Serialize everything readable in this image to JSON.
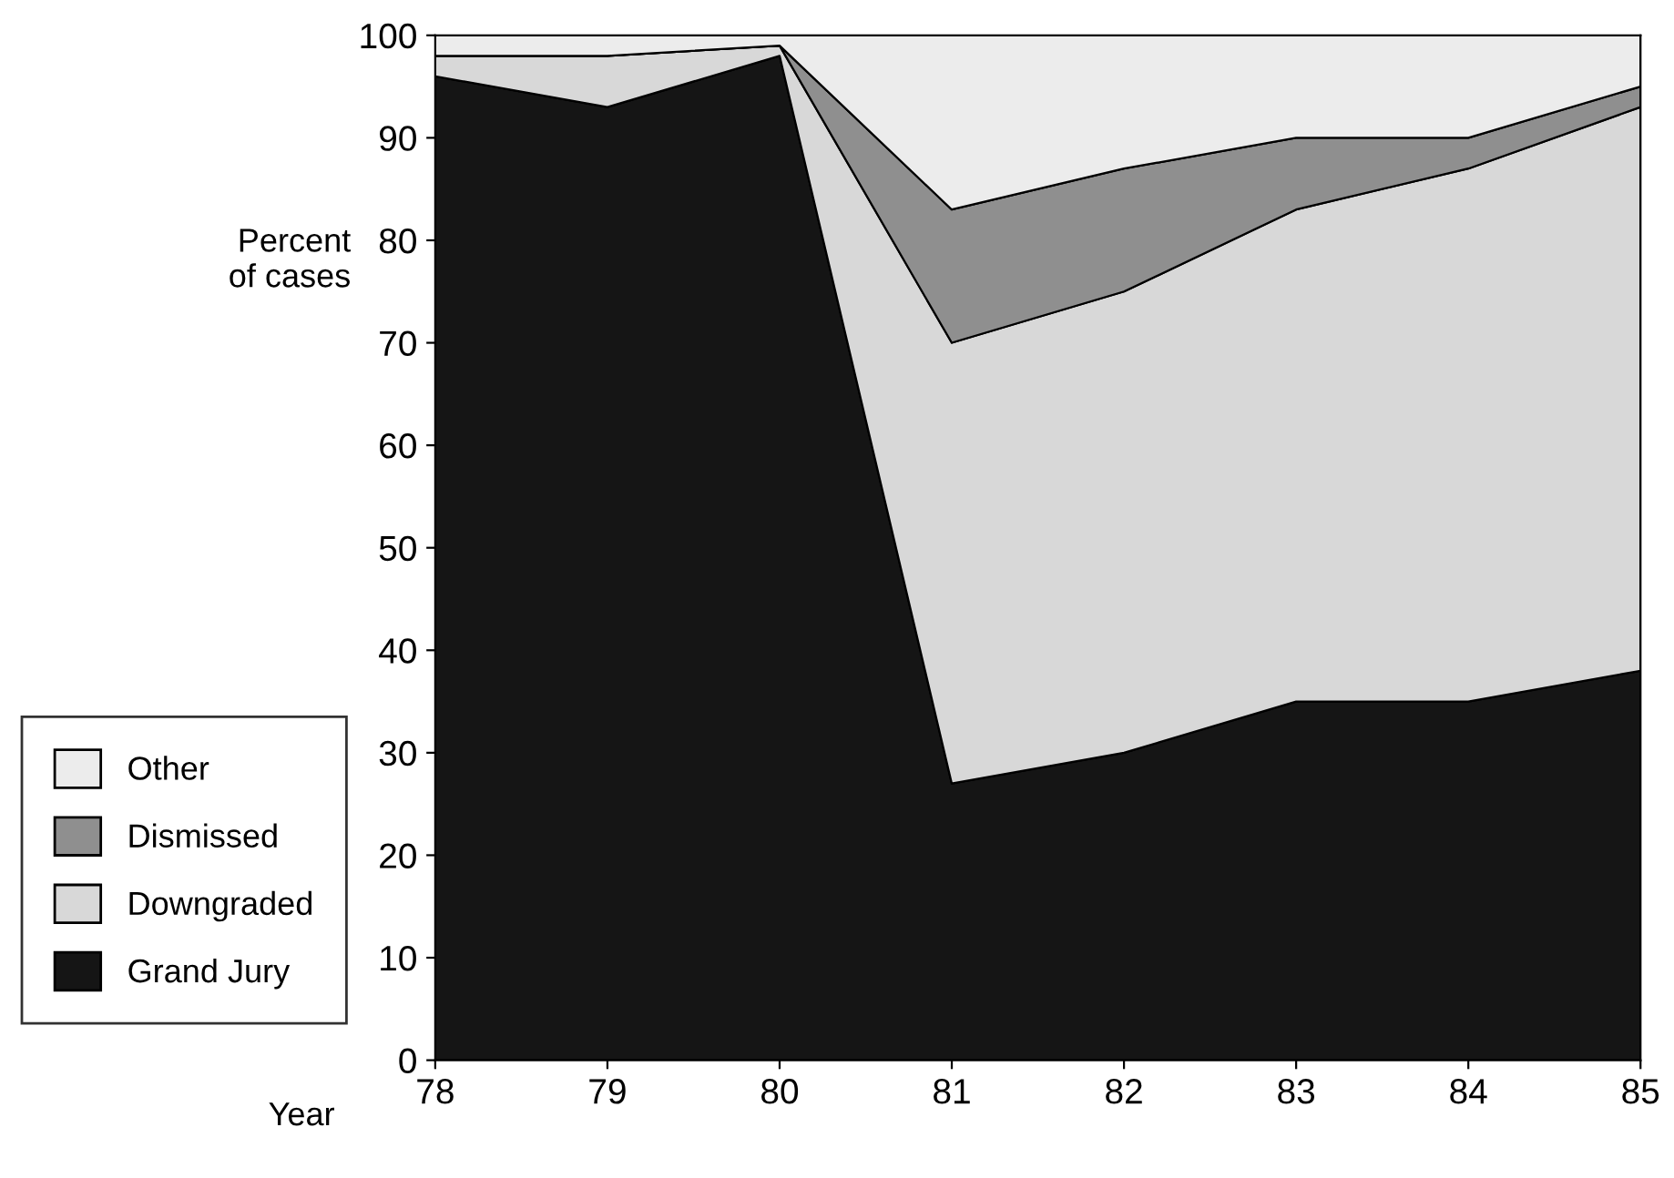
{
  "chart_data": {
    "type": "area",
    "stacked": true,
    "xlabel": "Year",
    "ylabel": "Percent\nof cases",
    "x": [
      78,
      79,
      80,
      81,
      82,
      83,
      84,
      85
    ],
    "xlim": [
      78,
      85
    ],
    "xticks": [
      78,
      79,
      80,
      81,
      82,
      83,
      84,
      85
    ],
    "ylim": [
      0,
      100
    ],
    "yticks": [
      0,
      10,
      20,
      30,
      40,
      50,
      60,
      70,
      80,
      90,
      100
    ],
    "grid": false,
    "legend": "bottom left",
    "series": [
      {
        "name": "Grand Jury",
        "color": "#151515",
        "values": [
          96,
          93,
          98,
          27,
          30,
          35,
          35,
          38
        ]
      },
      {
        "name": "Downgraded",
        "color": "#d8d8d8",
        "values": [
          2,
          5,
          1,
          43,
          45,
          48,
          52,
          55
        ]
      },
      {
        "name": "Dismissed",
        "color": "#8f8f8f",
        "values": [
          0,
          0,
          0,
          13,
          12,
          7,
          3,
          2
        ]
      },
      {
        "name": "Other",
        "color": "#ececec",
        "values": [
          2,
          2,
          1,
          17,
          13,
          10,
          10,
          5
        ]
      }
    ]
  }
}
